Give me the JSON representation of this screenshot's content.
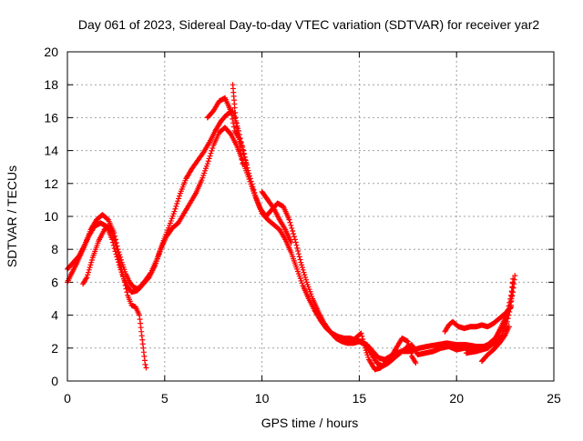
{
  "chart_data": {
    "type": "scatter",
    "title": "Day 061 of 2023, Sidereal Day-to-day VTEC variation (SDTVAR) for receiver yar2",
    "xlabel": "GPS time / hours",
    "ylabel": "SDTVAR / TECUs",
    "xlim": [
      0,
      25
    ],
    "ylim": [
      0,
      20
    ],
    "xticks": [
      "0",
      "5",
      "10",
      "15",
      "20",
      "25"
    ],
    "yticks": [
      "0",
      "2",
      "4",
      "6",
      "8",
      "10",
      "12",
      "14",
      "16",
      "18",
      "20"
    ],
    "grid": true,
    "marker": "+",
    "color": "#ff0000",
    "series": [
      {
        "name": "trace-1",
        "points": [
          [
            0.0,
            6.8
          ],
          [
            0.3,
            7.2
          ],
          [
            0.6,
            7.6
          ],
          [
            0.9,
            8.3
          ],
          [
            1.2,
            9.2
          ],
          [
            1.5,
            9.8
          ],
          [
            1.8,
            10.1
          ],
          [
            2.1,
            9.8
          ],
          [
            2.4,
            9.0
          ],
          [
            2.6,
            8.0
          ],
          [
            2.8,
            7.2
          ],
          [
            3.0,
            6.5
          ],
          [
            3.2,
            6.0
          ],
          [
            3.4,
            5.7
          ],
          [
            3.6,
            5.6
          ],
          [
            3.8,
            5.8
          ],
          [
            4.0,
            6.1
          ],
          [
            4.3,
            6.6
          ],
          [
            4.6,
            7.4
          ],
          [
            4.9,
            8.4
          ],
          [
            5.2,
            9.3
          ],
          [
            5.5,
            10.3
          ],
          [
            5.8,
            11.4
          ],
          [
            6.1,
            12.3
          ],
          [
            6.4,
            12.9
          ],
          [
            6.7,
            13.4
          ],
          [
            7.0,
            13.9
          ],
          [
            7.3,
            14.5
          ],
          [
            7.6,
            15.2
          ],
          [
            7.9,
            15.8
          ],
          [
            8.2,
            16.2
          ],
          [
            8.5,
            16.4
          ],
          [
            8.8,
            15.2
          ],
          [
            9.1,
            13.6
          ],
          [
            9.4,
            12.3
          ],
          [
            9.7,
            11.1
          ],
          [
            10.0,
            10.2
          ],
          [
            10.3,
            9.8
          ],
          [
            10.6,
            9.5
          ],
          [
            10.9,
            9.2
          ],
          [
            11.2,
            8.6
          ],
          [
            11.5,
            7.8
          ],
          [
            11.8,
            6.8
          ],
          [
            12.1,
            5.8
          ],
          [
            12.4,
            5.0
          ],
          [
            12.7,
            4.3
          ],
          [
            13.0,
            3.7
          ],
          [
            13.3,
            3.2
          ],
          [
            13.6,
            2.9
          ],
          [
            13.9,
            2.7
          ],
          [
            14.2,
            2.6
          ],
          [
            14.5,
            2.6
          ],
          [
            14.8,
            2.5
          ],
          [
            15.1,
            2.4
          ],
          [
            15.4,
            2.2
          ],
          [
            15.7,
            1.8
          ],
          [
            16.0,
            1.4
          ],
          [
            16.3,
            1.3
          ],
          [
            16.6,
            1.5
          ],
          [
            16.9,
            1.7
          ],
          [
            17.2,
            1.8
          ],
          [
            17.5,
            1.8
          ],
          [
            17.8,
            1.9
          ],
          [
            18.1,
            2.0
          ],
          [
            18.5,
            2.1
          ],
          [
            19.0,
            2.2
          ],
          [
            19.5,
            2.3
          ],
          [
            20.0,
            2.2
          ],
          [
            20.5,
            2.2
          ],
          [
            21.0,
            2.1
          ],
          [
            21.5,
            2.1
          ],
          [
            22.0,
            2.3
          ],
          [
            22.3,
            2.7
          ],
          [
            22.6,
            3.6
          ],
          [
            22.8,
            4.6
          ],
          [
            22.9,
            6.2
          ]
        ]
      },
      {
        "name": "trace-2",
        "points": [
          [
            0.0,
            6.0
          ],
          [
            0.2,
            6.5
          ],
          [
            0.5,
            7.2
          ],
          [
            0.8,
            8.0
          ],
          [
            1.1,
            8.8
          ],
          [
            1.4,
            9.4
          ],
          [
            1.7,
            9.6
          ],
          [
            2.0,
            9.4
          ],
          [
            2.3,
            8.6
          ],
          [
            2.5,
            7.7
          ],
          [
            2.7,
            6.9
          ],
          [
            2.9,
            6.2
          ],
          [
            3.1,
            5.7
          ],
          [
            3.3,
            5.4
          ],
          [
            3.6,
            5.5
          ],
          [
            3.9,
            5.9
          ],
          [
            4.2,
            6.3
          ],
          [
            4.5,
            7.0
          ],
          [
            4.8,
            8.0
          ],
          [
            5.1,
            8.8
          ],
          [
            5.4,
            9.3
          ],
          [
            5.7,
            9.6
          ],
          [
            6.0,
            10.2
          ],
          [
            6.3,
            10.8
          ],
          [
            6.6,
            11.4
          ],
          [
            6.9,
            12.2
          ],
          [
            7.2,
            13.2
          ],
          [
            7.5,
            14.3
          ],
          [
            7.8,
            15.1
          ],
          [
            8.1,
            15.4
          ],
          [
            8.4,
            15.0
          ],
          [
            8.7,
            14.3
          ],
          [
            9.0,
            13.4
          ],
          [
            9.3,
            12.4
          ],
          [
            9.6,
            11.4
          ],
          [
            9.9,
            10.5
          ],
          [
            10.2,
            10.0
          ],
          [
            10.5,
            10.4
          ],
          [
            10.8,
            10.8
          ],
          [
            11.1,
            10.6
          ],
          [
            11.4,
            9.8
          ],
          [
            11.7,
            8.6
          ],
          [
            12.0,
            7.2
          ],
          [
            12.3,
            6.0
          ],
          [
            12.6,
            5.0
          ],
          [
            12.9,
            4.2
          ],
          [
            13.2,
            3.5
          ],
          [
            13.5,
            3.0
          ],
          [
            13.8,
            2.6
          ],
          [
            14.1,
            2.4
          ],
          [
            14.4,
            2.3
          ],
          [
            14.7,
            2.3
          ],
          [
            15.0,
            2.4
          ],
          [
            15.3,
            2.2
          ],
          [
            15.6,
            1.7
          ],
          [
            15.9,
            1.1
          ],
          [
            16.2,
            0.9
          ],
          [
            16.5,
            1.1
          ],
          [
            16.8,
            1.4
          ],
          [
            17.1,
            1.7
          ],
          [
            17.4,
            2.0
          ],
          [
            17.7,
            2.2
          ],
          [
            18.0,
            1.6
          ],
          [
            18.4,
            1.7
          ],
          [
            18.8,
            1.8
          ],
          [
            19.2,
            2.0
          ],
          [
            19.6,
            2.1
          ],
          [
            20.0,
            1.9
          ],
          [
            20.4,
            2.0
          ],
          [
            20.8,
            1.9
          ],
          [
            21.2,
            2.0
          ],
          [
            21.6,
            2.2
          ],
          [
            22.0,
            2.6
          ],
          [
            22.3,
            3.3
          ],
          [
            22.6,
            4.1
          ],
          [
            22.8,
            5.2
          ],
          [
            22.9,
            6.0
          ]
        ]
      },
      {
        "name": "trace-3",
        "points": [
          [
            0.8,
            5.9
          ],
          [
            1.0,
            6.3
          ],
          [
            1.3,
            7.5
          ],
          [
            1.6,
            8.5
          ],
          [
            1.9,
            9.2
          ],
          [
            2.1,
            9.4
          ],
          [
            2.3,
            9.0
          ],
          [
            2.5,
            8.2
          ],
          [
            2.7,
            7.2
          ],
          [
            2.9,
            6.2
          ],
          [
            3.1,
            5.2
          ],
          [
            3.3,
            4.6
          ],
          [
            3.5,
            4.5
          ],
          [
            3.7,
            4.0
          ],
          [
            3.8,
            3.0
          ],
          [
            3.9,
            2.0
          ],
          [
            4.0,
            1.0
          ],
          [
            4.05,
            0.8
          ]
        ]
      },
      {
        "name": "trace-4",
        "points": [
          [
            7.2,
            16.0
          ],
          [
            7.5,
            16.4
          ],
          [
            7.8,
            17.0
          ],
          [
            8.1,
            17.2
          ],
          [
            8.4,
            16.4
          ],
          [
            8.6,
            15.2
          ],
          [
            8.8,
            14.8
          ],
          [
            9.0,
            14.2
          ],
          [
            9.2,
            13.2
          ]
        ]
      },
      {
        "name": "trace-5",
        "points": [
          [
            8.5,
            18.0
          ],
          [
            8.55,
            17.3
          ],
          [
            8.6,
            16.6
          ],
          [
            8.65,
            16.0
          ],
          [
            8.7,
            15.4
          ],
          [
            8.8,
            14.8
          ],
          [
            8.9,
            14.0
          ],
          [
            9.0,
            13.2
          ]
        ]
      },
      {
        "name": "trace-6",
        "points": [
          [
            19.4,
            3.0
          ],
          [
            19.6,
            3.4
          ],
          [
            19.8,
            3.6
          ],
          [
            20.1,
            3.3
          ],
          [
            20.4,
            3.2
          ],
          [
            20.7,
            3.3
          ],
          [
            21.0,
            3.3
          ],
          [
            21.3,
            3.4
          ],
          [
            21.6,
            3.3
          ],
          [
            21.9,
            3.5
          ],
          [
            22.2,
            3.8
          ],
          [
            22.5,
            4.1
          ],
          [
            22.8,
            4.5
          ]
        ]
      },
      {
        "name": "trace-7",
        "points": [
          [
            20.5,
            1.7
          ],
          [
            21.0,
            1.8
          ],
          [
            21.3,
            1.9
          ],
          [
            21.6,
            2.0
          ],
          [
            21.8,
            2.2
          ],
          [
            22.0,
            2.6
          ],
          [
            22.2,
            3.0
          ],
          [
            22.5,
            3.6
          ],
          [
            22.7,
            4.4
          ],
          [
            22.9,
            5.4
          ],
          [
            23.0,
            6.4
          ]
        ]
      },
      {
        "name": "trace-8",
        "points": [
          [
            21.3,
            1.2
          ],
          [
            21.6,
            1.6
          ],
          [
            21.9,
            1.9
          ],
          [
            22.2,
            2.3
          ],
          [
            22.5,
            2.8
          ],
          [
            22.7,
            3.3
          ]
        ]
      },
      {
        "name": "trace-9",
        "points": [
          [
            14.8,
            2.6
          ],
          [
            15.1,
            2.9
          ],
          [
            15.3,
            2.0
          ],
          [
            15.5,
            1.3
          ],
          [
            15.8,
            0.7
          ],
          [
            16.1,
            0.8
          ],
          [
            16.4,
            1.2
          ],
          [
            16.7,
            1.6
          ],
          [
            17.0,
            2.2
          ],
          [
            17.2,
            2.6
          ],
          [
            17.5,
            2.4
          ],
          [
            17.7,
            1.5
          ],
          [
            17.9,
            1.1
          ]
        ]
      },
      {
        "name": "trace-10",
        "points": [
          [
            10.0,
            11.5
          ],
          [
            10.3,
            11.0
          ],
          [
            10.6,
            10.5
          ],
          [
            10.9,
            9.8
          ],
          [
            11.2,
            9.2
          ],
          [
            11.5,
            8.4
          ]
        ]
      }
    ]
  }
}
